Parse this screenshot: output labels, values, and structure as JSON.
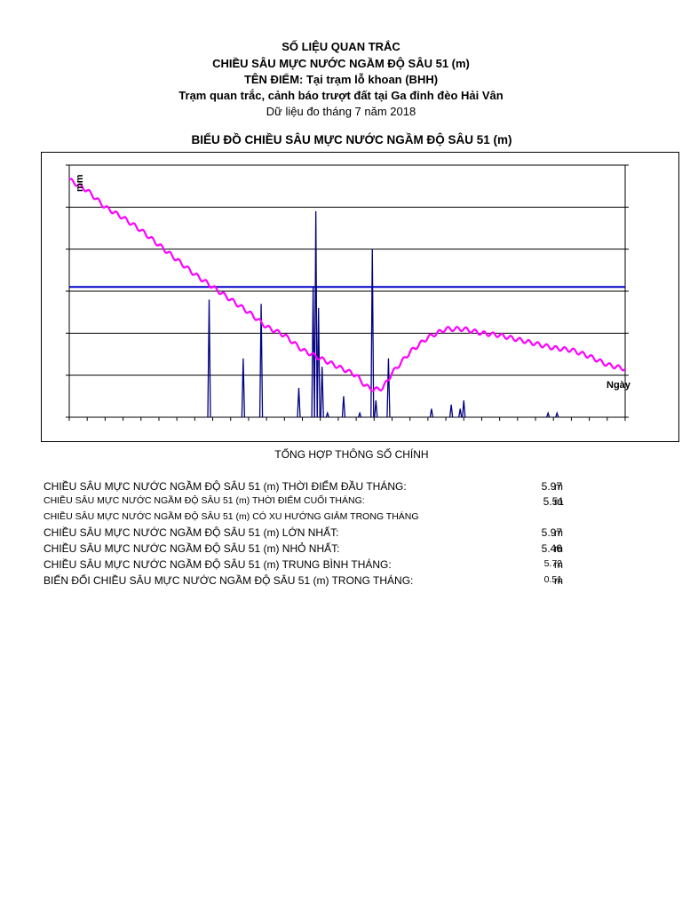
{
  "header": {
    "line1": "SỐ LIỆU QUAN TRẮC",
    "line2": "CHIỀU SÂU MỰC NƯỚC NGẦM ĐỘ SÂU 51 (m)",
    "line3": "TÊN ĐIỂM:  Tại trạm lỗ khoan (BHH)",
    "line4": "Trạm quan trắc, cảnh báo trượt đất tại Ga đỉnh đèo Hải Vân",
    "line5": "Dữ liệu đo tháng 7 năm 2018"
  },
  "chart_data": {
    "type": "line",
    "title": "BIỂU ĐỒ CHIỀU SÂU MỰC NƯỚC NGẦM ĐỘ SÂU 51 (m)",
    "ylabel": "mm",
    "xlabel": "Ngày",
    "ylim": [
      0,
      6
    ],
    "xlim": [
      0,
      31
    ],
    "grid": true,
    "colors": {
      "depth_line": "#ff00ff",
      "rain_spikes": "#000080",
      "reference_line": "#0000cc",
      "grid": "#000000"
    },
    "reference_line": {
      "y": 3.1
    },
    "series": [
      {
        "kind": "depth",
        "x": [
          0,
          1,
          2,
          3,
          4,
          5,
          6,
          7,
          8,
          9,
          10,
          11,
          12,
          13,
          14,
          15,
          16,
          16.5,
          17,
          17.5,
          18,
          19,
          20,
          21,
          22,
          22.5,
          23,
          24,
          25,
          26,
          27,
          28,
          29,
          30,
          31
        ],
        "y": [
          5.65,
          5.4,
          5.0,
          4.75,
          4.45,
          4.1,
          3.75,
          3.4,
          3.1,
          2.8,
          2.5,
          2.15,
          1.95,
          1.6,
          1.4,
          1.2,
          1.0,
          0.75,
          0.65,
          0.7,
          1.05,
          1.55,
          1.9,
          2.1,
          2.1,
          2.05,
          2.0,
          1.95,
          1.85,
          1.75,
          1.65,
          1.6,
          1.45,
          1.25,
          1.15
        ]
      },
      {
        "kind": "rain",
        "x": [
          7.8,
          9.7,
          10.7,
          12.8,
          13.6,
          13.75,
          13.9,
          14.1,
          14.4,
          15.3,
          16.2,
          16.9,
          17.1,
          17.8,
          20.2,
          21.3,
          21.8,
          22.0,
          26.7,
          27.2
        ],
        "y": [
          2.8,
          1.4,
          2.7,
          0.7,
          3.1,
          4.9,
          2.6,
          1.2,
          0.1,
          0.5,
          0.1,
          4.0,
          0.4,
          1.4,
          0.2,
          0.3,
          0.2,
          0.4,
          0.1,
          0.1
        ]
      }
    ]
  },
  "summary": {
    "title": "TỔNG HỢP THÔNG SỐ CHÍNH",
    "rows": [
      {
        "label": "CHIỀU SÂU MỰC NƯỚC NGẦM ĐỘ SÂU 51 (m) THỜI ĐIỂM ĐẦU THÁNG:",
        "value": "5.97",
        "unit": "m"
      },
      {
        "label": "CHIỀU SÂU MỰC NƯỚC NGẦM ĐỘ SÂU 51 (m) THỜI ĐIỂM CUỐI THÁNG:",
        "value": "5.51",
        "unit": "m"
      },
      {
        "label": "CHIỀU SÂU MỰC NƯỚC NGẦM ĐỘ SÂU 51 (m) CÓ XU HƯỚNG GIẢM TRONG THÁNG",
        "value": "",
        "unit": ""
      },
      {
        "label": "CHIỀU SÂU MỰC NƯỚC NGẦM ĐỘ SÂU 51 (m) LỚN NHẤT:",
        "value": "5.97",
        "unit": "m"
      },
      {
        "label": "CHIỀU SÂU MỰC NƯỚC NGẦM ĐỘ SÂU 51 (m) NHỎ NHẤT:",
        "value": "5.46",
        "unit": "m"
      },
      {
        "label": "CHIỀU SÂU MỰC NƯỚC NGẦM ĐỘ SÂU 51 (m) TRUNG BÌNH THÁNG:",
        "value": "5.72",
        "unit": "m"
      },
      {
        "label": "BIẾN ĐỔI CHIỀU SÂU MỰC NƯỚC NGẦM ĐỘ SÂU 51 (m) TRONG THÁNG:",
        "value": "0.51",
        "unit": "m"
      }
    ]
  }
}
